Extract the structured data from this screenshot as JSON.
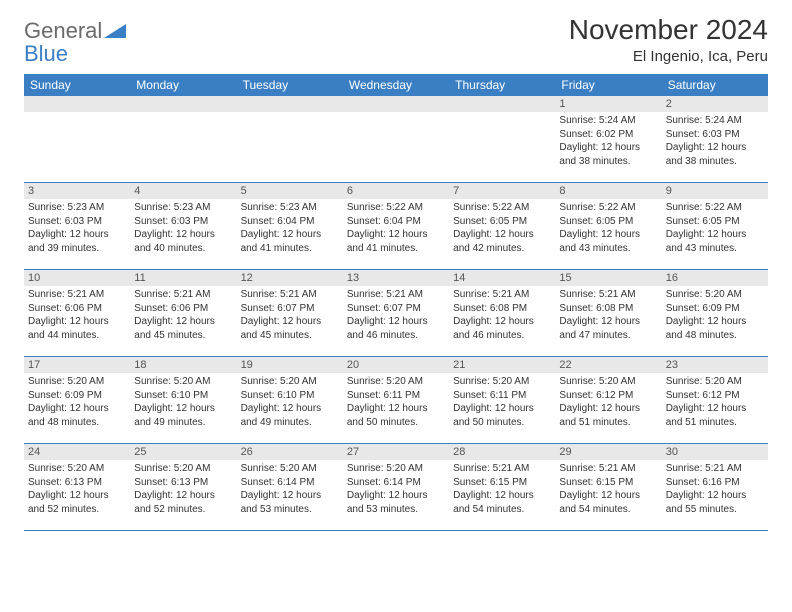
{
  "logo": {
    "text1": "General",
    "text2": "Blue"
  },
  "title": "November 2024",
  "location": "El Ingenio, Ica, Peru",
  "colors": {
    "header_bg": "#3a7fc4",
    "daynum_bg": "#e8e8e8",
    "text": "#333333",
    "logo_gray": "#6b6b6b",
    "logo_blue": "#3a7fc4"
  },
  "weekdays": [
    "Sunday",
    "Monday",
    "Tuesday",
    "Wednesday",
    "Thursday",
    "Friday",
    "Saturday"
  ],
  "weeks": [
    [
      {
        "n": "",
        "sr": "",
        "ss": "",
        "dl": ""
      },
      {
        "n": "",
        "sr": "",
        "ss": "",
        "dl": ""
      },
      {
        "n": "",
        "sr": "",
        "ss": "",
        "dl": ""
      },
      {
        "n": "",
        "sr": "",
        "ss": "",
        "dl": ""
      },
      {
        "n": "",
        "sr": "",
        "ss": "",
        "dl": ""
      },
      {
        "n": "1",
        "sr": "Sunrise: 5:24 AM",
        "ss": "Sunset: 6:02 PM",
        "dl": "Daylight: 12 hours and 38 minutes."
      },
      {
        "n": "2",
        "sr": "Sunrise: 5:24 AM",
        "ss": "Sunset: 6:03 PM",
        "dl": "Daylight: 12 hours and 38 minutes."
      }
    ],
    [
      {
        "n": "3",
        "sr": "Sunrise: 5:23 AM",
        "ss": "Sunset: 6:03 PM",
        "dl": "Daylight: 12 hours and 39 minutes."
      },
      {
        "n": "4",
        "sr": "Sunrise: 5:23 AM",
        "ss": "Sunset: 6:03 PM",
        "dl": "Daylight: 12 hours and 40 minutes."
      },
      {
        "n": "5",
        "sr": "Sunrise: 5:23 AM",
        "ss": "Sunset: 6:04 PM",
        "dl": "Daylight: 12 hours and 41 minutes."
      },
      {
        "n": "6",
        "sr": "Sunrise: 5:22 AM",
        "ss": "Sunset: 6:04 PM",
        "dl": "Daylight: 12 hours and 41 minutes."
      },
      {
        "n": "7",
        "sr": "Sunrise: 5:22 AM",
        "ss": "Sunset: 6:05 PM",
        "dl": "Daylight: 12 hours and 42 minutes."
      },
      {
        "n": "8",
        "sr": "Sunrise: 5:22 AM",
        "ss": "Sunset: 6:05 PM",
        "dl": "Daylight: 12 hours and 43 minutes."
      },
      {
        "n": "9",
        "sr": "Sunrise: 5:22 AM",
        "ss": "Sunset: 6:05 PM",
        "dl": "Daylight: 12 hours and 43 minutes."
      }
    ],
    [
      {
        "n": "10",
        "sr": "Sunrise: 5:21 AM",
        "ss": "Sunset: 6:06 PM",
        "dl": "Daylight: 12 hours and 44 minutes."
      },
      {
        "n": "11",
        "sr": "Sunrise: 5:21 AM",
        "ss": "Sunset: 6:06 PM",
        "dl": "Daylight: 12 hours and 45 minutes."
      },
      {
        "n": "12",
        "sr": "Sunrise: 5:21 AM",
        "ss": "Sunset: 6:07 PM",
        "dl": "Daylight: 12 hours and 45 minutes."
      },
      {
        "n": "13",
        "sr": "Sunrise: 5:21 AM",
        "ss": "Sunset: 6:07 PM",
        "dl": "Daylight: 12 hours and 46 minutes."
      },
      {
        "n": "14",
        "sr": "Sunrise: 5:21 AM",
        "ss": "Sunset: 6:08 PM",
        "dl": "Daylight: 12 hours and 46 minutes."
      },
      {
        "n": "15",
        "sr": "Sunrise: 5:21 AM",
        "ss": "Sunset: 6:08 PM",
        "dl": "Daylight: 12 hours and 47 minutes."
      },
      {
        "n": "16",
        "sr": "Sunrise: 5:20 AM",
        "ss": "Sunset: 6:09 PM",
        "dl": "Daylight: 12 hours and 48 minutes."
      }
    ],
    [
      {
        "n": "17",
        "sr": "Sunrise: 5:20 AM",
        "ss": "Sunset: 6:09 PM",
        "dl": "Daylight: 12 hours and 48 minutes."
      },
      {
        "n": "18",
        "sr": "Sunrise: 5:20 AM",
        "ss": "Sunset: 6:10 PM",
        "dl": "Daylight: 12 hours and 49 minutes."
      },
      {
        "n": "19",
        "sr": "Sunrise: 5:20 AM",
        "ss": "Sunset: 6:10 PM",
        "dl": "Daylight: 12 hours and 49 minutes."
      },
      {
        "n": "20",
        "sr": "Sunrise: 5:20 AM",
        "ss": "Sunset: 6:11 PM",
        "dl": "Daylight: 12 hours and 50 minutes."
      },
      {
        "n": "21",
        "sr": "Sunrise: 5:20 AM",
        "ss": "Sunset: 6:11 PM",
        "dl": "Daylight: 12 hours and 50 minutes."
      },
      {
        "n": "22",
        "sr": "Sunrise: 5:20 AM",
        "ss": "Sunset: 6:12 PM",
        "dl": "Daylight: 12 hours and 51 minutes."
      },
      {
        "n": "23",
        "sr": "Sunrise: 5:20 AM",
        "ss": "Sunset: 6:12 PM",
        "dl": "Daylight: 12 hours and 51 minutes."
      }
    ],
    [
      {
        "n": "24",
        "sr": "Sunrise: 5:20 AM",
        "ss": "Sunset: 6:13 PM",
        "dl": "Daylight: 12 hours and 52 minutes."
      },
      {
        "n": "25",
        "sr": "Sunrise: 5:20 AM",
        "ss": "Sunset: 6:13 PM",
        "dl": "Daylight: 12 hours and 52 minutes."
      },
      {
        "n": "26",
        "sr": "Sunrise: 5:20 AM",
        "ss": "Sunset: 6:14 PM",
        "dl": "Daylight: 12 hours and 53 minutes."
      },
      {
        "n": "27",
        "sr": "Sunrise: 5:20 AM",
        "ss": "Sunset: 6:14 PM",
        "dl": "Daylight: 12 hours and 53 minutes."
      },
      {
        "n": "28",
        "sr": "Sunrise: 5:21 AM",
        "ss": "Sunset: 6:15 PM",
        "dl": "Daylight: 12 hours and 54 minutes."
      },
      {
        "n": "29",
        "sr": "Sunrise: 5:21 AM",
        "ss": "Sunset: 6:15 PM",
        "dl": "Daylight: 12 hours and 54 minutes."
      },
      {
        "n": "30",
        "sr": "Sunrise: 5:21 AM",
        "ss": "Sunset: 6:16 PM",
        "dl": "Daylight: 12 hours and 55 minutes."
      }
    ]
  ]
}
